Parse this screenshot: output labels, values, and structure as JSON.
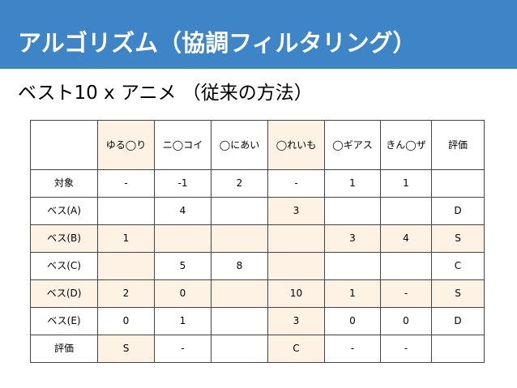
{
  "slide": {
    "title": "アルゴリズム（協調フィルタリング）",
    "subtitle": "ベスト10 x アニメ （従来の方法）"
  },
  "table": {
    "columns": [
      "",
      "ゆる◯り",
      "ニ◯コイ",
      "◯にあい",
      "◯れいも",
      "◯ギアス",
      "きん◯ザ",
      "評価"
    ],
    "rows": [
      {
        "label": "対象",
        "cells": [
          "-",
          "-1",
          "2",
          "-",
          "1",
          "1",
          ""
        ]
      },
      {
        "label": "ベス(A)",
        "cells": [
          "",
          "4",
          "",
          "3",
          "",
          "",
          "D"
        ]
      },
      {
        "label": "ベス(B)",
        "cells": [
          "1",
          "",
          "",
          "",
          "3",
          "4",
          "S"
        ]
      },
      {
        "label": "ベス(C)",
        "cells": [
          "",
          "5",
          "8",
          "",
          "",
          "",
          "C"
        ]
      },
      {
        "label": "ベス(D)",
        "cells": [
          "2",
          "0",
          "",
          "10",
          "1",
          "-",
          "S"
        ]
      },
      {
        "label": "ベス(E)",
        "cells": [
          "0",
          "1",
          "",
          "3",
          "0",
          "0",
          "D"
        ]
      },
      {
        "label": "評価",
        "cells": [
          "S",
          "-",
          "",
          "C",
          "-",
          "-",
          ""
        ]
      }
    ]
  },
  "colors": {
    "title_bar": "#3d85c6",
    "highlight": "#fdf2e3"
  }
}
